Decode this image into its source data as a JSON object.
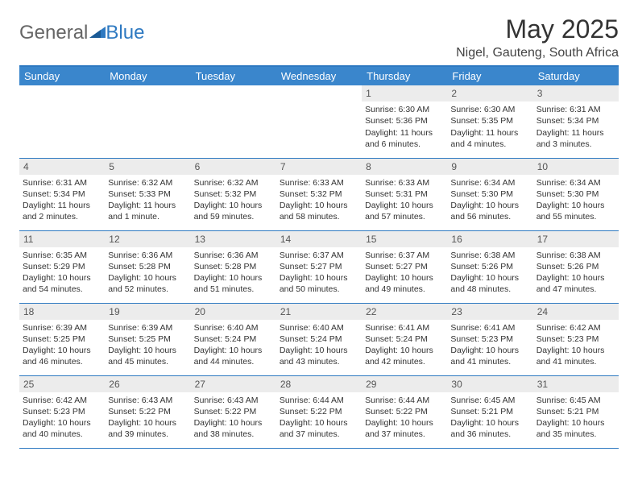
{
  "brand": {
    "part1": "General",
    "part2": "Blue"
  },
  "title": "May 2025",
  "location": "Nigel, Gauteng, South Africa",
  "colors": {
    "header_bg": "#3a86cc",
    "header_text": "#ffffff",
    "border": "#2e79c1",
    "daynum_bg": "#ececec",
    "body_text": "#333333",
    "background": "#ffffff"
  },
  "typography": {
    "title_fontsize": 32,
    "location_fontsize": 16,
    "dayhead_fontsize": 13,
    "daynum_fontsize": 12,
    "cell_fontsize": 10.5
  },
  "dayNames": [
    "Sunday",
    "Monday",
    "Tuesday",
    "Wednesday",
    "Thursday",
    "Friday",
    "Saturday"
  ],
  "weeks": [
    [
      {
        "n": "",
        "lines": []
      },
      {
        "n": "",
        "lines": []
      },
      {
        "n": "",
        "lines": []
      },
      {
        "n": "",
        "lines": []
      },
      {
        "n": "1",
        "lines": [
          "Sunrise: 6:30 AM",
          "Sunset: 5:36 PM",
          "Daylight: 11 hours and 6 minutes."
        ]
      },
      {
        "n": "2",
        "lines": [
          "Sunrise: 6:30 AM",
          "Sunset: 5:35 PM",
          "Daylight: 11 hours and 4 minutes."
        ]
      },
      {
        "n": "3",
        "lines": [
          "Sunrise: 6:31 AM",
          "Sunset: 5:34 PM",
          "Daylight: 11 hours and 3 minutes."
        ]
      }
    ],
    [
      {
        "n": "4",
        "lines": [
          "Sunrise: 6:31 AM",
          "Sunset: 5:34 PM",
          "Daylight: 11 hours and 2 minutes."
        ]
      },
      {
        "n": "5",
        "lines": [
          "Sunrise: 6:32 AM",
          "Sunset: 5:33 PM",
          "Daylight: 11 hours and 1 minute."
        ]
      },
      {
        "n": "6",
        "lines": [
          "Sunrise: 6:32 AM",
          "Sunset: 5:32 PM",
          "Daylight: 10 hours and 59 minutes."
        ]
      },
      {
        "n": "7",
        "lines": [
          "Sunrise: 6:33 AM",
          "Sunset: 5:32 PM",
          "Daylight: 10 hours and 58 minutes."
        ]
      },
      {
        "n": "8",
        "lines": [
          "Sunrise: 6:33 AM",
          "Sunset: 5:31 PM",
          "Daylight: 10 hours and 57 minutes."
        ]
      },
      {
        "n": "9",
        "lines": [
          "Sunrise: 6:34 AM",
          "Sunset: 5:30 PM",
          "Daylight: 10 hours and 56 minutes."
        ]
      },
      {
        "n": "10",
        "lines": [
          "Sunrise: 6:34 AM",
          "Sunset: 5:30 PM",
          "Daylight: 10 hours and 55 minutes."
        ]
      }
    ],
    [
      {
        "n": "11",
        "lines": [
          "Sunrise: 6:35 AM",
          "Sunset: 5:29 PM",
          "Daylight: 10 hours and 54 minutes."
        ]
      },
      {
        "n": "12",
        "lines": [
          "Sunrise: 6:36 AM",
          "Sunset: 5:28 PM",
          "Daylight: 10 hours and 52 minutes."
        ]
      },
      {
        "n": "13",
        "lines": [
          "Sunrise: 6:36 AM",
          "Sunset: 5:28 PM",
          "Daylight: 10 hours and 51 minutes."
        ]
      },
      {
        "n": "14",
        "lines": [
          "Sunrise: 6:37 AM",
          "Sunset: 5:27 PM",
          "Daylight: 10 hours and 50 minutes."
        ]
      },
      {
        "n": "15",
        "lines": [
          "Sunrise: 6:37 AM",
          "Sunset: 5:27 PM",
          "Daylight: 10 hours and 49 minutes."
        ]
      },
      {
        "n": "16",
        "lines": [
          "Sunrise: 6:38 AM",
          "Sunset: 5:26 PM",
          "Daylight: 10 hours and 48 minutes."
        ]
      },
      {
        "n": "17",
        "lines": [
          "Sunrise: 6:38 AM",
          "Sunset: 5:26 PM",
          "Daylight: 10 hours and 47 minutes."
        ]
      }
    ],
    [
      {
        "n": "18",
        "lines": [
          "Sunrise: 6:39 AM",
          "Sunset: 5:25 PM",
          "Daylight: 10 hours and 46 minutes."
        ]
      },
      {
        "n": "19",
        "lines": [
          "Sunrise: 6:39 AM",
          "Sunset: 5:25 PM",
          "Daylight: 10 hours and 45 minutes."
        ]
      },
      {
        "n": "20",
        "lines": [
          "Sunrise: 6:40 AM",
          "Sunset: 5:24 PM",
          "Daylight: 10 hours and 44 minutes."
        ]
      },
      {
        "n": "21",
        "lines": [
          "Sunrise: 6:40 AM",
          "Sunset: 5:24 PM",
          "Daylight: 10 hours and 43 minutes."
        ]
      },
      {
        "n": "22",
        "lines": [
          "Sunrise: 6:41 AM",
          "Sunset: 5:24 PM",
          "Daylight: 10 hours and 42 minutes."
        ]
      },
      {
        "n": "23",
        "lines": [
          "Sunrise: 6:41 AM",
          "Sunset: 5:23 PM",
          "Daylight: 10 hours and 41 minutes."
        ]
      },
      {
        "n": "24",
        "lines": [
          "Sunrise: 6:42 AM",
          "Sunset: 5:23 PM",
          "Daylight: 10 hours and 41 minutes."
        ]
      }
    ],
    [
      {
        "n": "25",
        "lines": [
          "Sunrise: 6:42 AM",
          "Sunset: 5:23 PM",
          "Daylight: 10 hours and 40 minutes."
        ]
      },
      {
        "n": "26",
        "lines": [
          "Sunrise: 6:43 AM",
          "Sunset: 5:22 PM",
          "Daylight: 10 hours and 39 minutes."
        ]
      },
      {
        "n": "27",
        "lines": [
          "Sunrise: 6:43 AM",
          "Sunset: 5:22 PM",
          "Daylight: 10 hours and 38 minutes."
        ]
      },
      {
        "n": "28",
        "lines": [
          "Sunrise: 6:44 AM",
          "Sunset: 5:22 PM",
          "Daylight: 10 hours and 37 minutes."
        ]
      },
      {
        "n": "29",
        "lines": [
          "Sunrise: 6:44 AM",
          "Sunset: 5:22 PM",
          "Daylight: 10 hours and 37 minutes."
        ]
      },
      {
        "n": "30",
        "lines": [
          "Sunrise: 6:45 AM",
          "Sunset: 5:21 PM",
          "Daylight: 10 hours and 36 minutes."
        ]
      },
      {
        "n": "31",
        "lines": [
          "Sunrise: 6:45 AM",
          "Sunset: 5:21 PM",
          "Daylight: 10 hours and 35 minutes."
        ]
      }
    ]
  ]
}
